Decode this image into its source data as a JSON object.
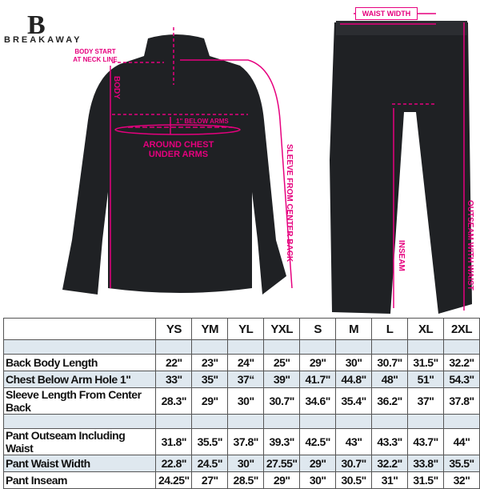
{
  "brand": {
    "name": "BREAKAWAY",
    "logo_letter": "B"
  },
  "annotations": {
    "body_start": "BODY START AT NECK LINE",
    "body": "BODY",
    "below_arms": "1\" BELOW ARMS",
    "around_chest": "AROUND CHEST UNDER ARMS",
    "sleeve": "SLEEVE FROM CENTER BACK",
    "waist_width": "WAIST WIDTH",
    "inseam": "INSEAM",
    "outseam": "OUTSEAM WITH WAIST"
  },
  "colors": {
    "accent": "#e6007e",
    "garment": "#1f2124",
    "row_shade": "#dfe8ef"
  },
  "table": {
    "sizes": [
      "YS",
      "YM",
      "YL",
      "YXL",
      "S",
      "M",
      "L",
      "XL",
      "2XL"
    ],
    "rows": [
      {
        "blank": true
      },
      {
        "label": "Back Body Length",
        "values": [
          "22\"",
          "23\"",
          "24\"",
          "25\"",
          "29\"",
          "30\"",
          "30.7\"",
          "31.5\"",
          "32.2\""
        ]
      },
      {
        "label": "Chest Below Arm Hole 1\"",
        "values": [
          "33\"",
          "35\"",
          "37“",
          "39\"",
          "41.7\"",
          "44.8\"",
          "48\"",
          "51\"",
          "54.3\""
        ],
        "shade": true
      },
      {
        "label": "Sleeve Length From Center Back",
        "values": [
          "28.3\"",
          "29\"",
          "30\"",
          "30.7\"",
          "34.6\"",
          "35.4\"",
          "36.2\"",
          "37\"",
          "37.8\""
        ]
      },
      {
        "blank": true
      },
      {
        "label": "Pant Outseam Including Waist",
        "values": [
          "31.8\"",
          "35.5\"",
          "37.8\"",
          "39.3\"",
          "42.5\"",
          "43\"",
          "43.3\"",
          "43.7\"",
          "44\""
        ]
      },
      {
        "label": "Pant Waist Width",
        "values": [
          "22.8\"",
          "24.5\"",
          "30\"",
          "27.55\"",
          "29\"",
          "30.7\"",
          "32.2\"",
          "33.8\"",
          "35.5\""
        ],
        "shade": true
      },
      {
        "label": "Pant Inseam",
        "values": [
          "24.25\"",
          "27\"",
          "28.5\"",
          "29\"",
          "30\"",
          "30.5\"",
          "31\"",
          "31.5\"",
          "32\""
        ]
      }
    ]
  }
}
